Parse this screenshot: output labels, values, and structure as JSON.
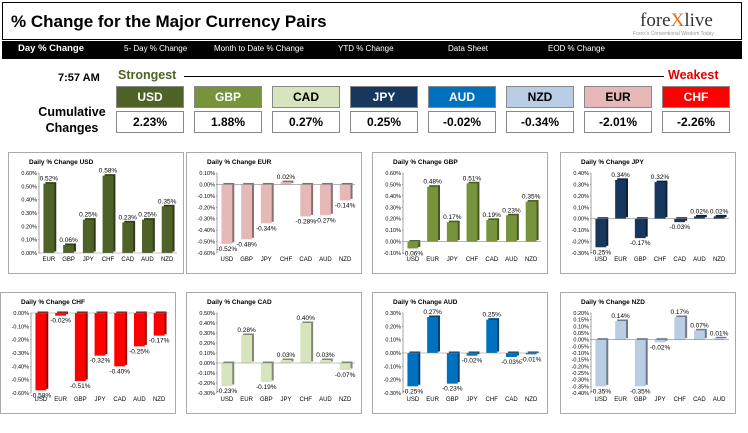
{
  "header": {
    "title": "% Change for the Major Currency Pairs",
    "logo_main": "fore",
    "logo_accent": "X",
    "logo_tail": "live",
    "logo_sub": "Forex's Conventional Wisdom Today"
  },
  "nav": [
    "Day % Change",
    "5- Day % Change",
    "Month to Date % Change",
    "YTD % Change",
    "Data Sheet",
    "EOD % Change"
  ],
  "time": "7:57 AM",
  "strongest_label": "Strongest",
  "weakest_label": "Weakest",
  "cumulative_label": "Cumulative Changes",
  "ranking": [
    {
      "currency": "USD",
      "change": "2.23%",
      "bg": "#4f6228",
      "fg": "#ffffff"
    },
    {
      "currency": "GBP",
      "change": "1.88%",
      "bg": "#77933c",
      "fg": "#ffffff"
    },
    {
      "currency": "CAD",
      "change": "0.27%",
      "bg": "#d7e4bd",
      "fg": "#000000"
    },
    {
      "currency": "JPY",
      "change": "0.25%",
      "bg": "#17375e",
      "fg": "#ffffff"
    },
    {
      "currency": "AUD",
      "change": "-0.02%",
      "bg": "#0070c0",
      "fg": "#ffffff"
    },
    {
      "currency": "NZD",
      "change": "-0.34%",
      "bg": "#b9cde5",
      "fg": "#000000"
    },
    {
      "currency": "EUR",
      "change": "-2.01%",
      "bg": "#e6b9b8",
      "fg": "#000000"
    },
    {
      "currency": "CHF",
      "change": "-2.26%",
      "bg": "#ff0000",
      "fg": "#ffffff"
    }
  ],
  "chart_data": [
    {
      "type": "bar",
      "title": "Daily % Change USD",
      "color": "#4f6228",
      "ylim": [
        0,
        0.6
      ],
      "step": 0.1,
      "categories": [
        "EUR",
        "GBP",
        "JPY",
        "CHF",
        "CAD",
        "AUD",
        "NZD"
      ],
      "values": [
        0.52,
        0.06,
        0.25,
        0.58,
        0.23,
        0.25,
        0.35
      ],
      "labels": [
        "0.52%",
        "0.06%",
        "0.25%",
        "0.58%",
        "0.23%",
        "0.25%",
        "0.35%"
      ]
    },
    {
      "type": "bar",
      "title": "Daily % Change EUR",
      "color": "#e6b9b8",
      "ylim": [
        -0.6,
        0.1
      ],
      "step": 0.1,
      "categories": [
        "USD",
        "GBP",
        "JPY",
        "CHF",
        "CAD",
        "AUD",
        "NZD"
      ],
      "values": [
        -0.52,
        -0.48,
        -0.34,
        0.02,
        -0.28,
        -0.27,
        -0.14
      ],
      "labels": [
        "-0.52%",
        "-0.48%",
        "-0.34%",
        "0.02%",
        "-0.28%",
        "-0.27%",
        "-0.14%"
      ]
    },
    {
      "type": "bar",
      "title": "Daily % Change GBP",
      "color": "#77933c",
      "ylim": [
        -0.1,
        0.6
      ],
      "step": 0.1,
      "categories": [
        "USD",
        "EUR",
        "JPY",
        "CHF",
        "CAD",
        "AUD",
        "NZD"
      ],
      "values": [
        -0.06,
        0.48,
        0.17,
        0.51,
        0.19,
        0.23,
        0.35
      ],
      "labels": [
        "-0.06%",
        "0.48%",
        "0.17%",
        "0.51%",
        "0.19%",
        "0.23%",
        "0.35%"
      ]
    },
    {
      "type": "bar",
      "title": "Daily % Change JPY",
      "color": "#17375e",
      "ylim": [
        -0.3,
        0.4
      ],
      "step": 0.1,
      "categories": [
        "USD",
        "EUR",
        "GBP",
        "CHF",
        "CAD",
        "AUD",
        "NZD"
      ],
      "values": [
        -0.25,
        0.34,
        -0.17,
        0.32,
        -0.03,
        0.02,
        0.02
      ],
      "labels": [
        "-0.25%",
        "0.34%",
        "-0.17%",
        "0.32%",
        "-0.03%",
        "0.02%",
        "0.02%"
      ]
    },
    {
      "type": "bar",
      "title": "Daily % Change CHF",
      "color": "#ff0000",
      "ylim": [
        -0.6,
        0
      ],
      "step": 0.1,
      "categories": [
        "USD",
        "EUR",
        "GBP",
        "JPY",
        "CAD",
        "AUD",
        "NZD"
      ],
      "values": [
        -0.58,
        -0.02,
        -0.51,
        -0.32,
        -0.4,
        -0.25,
        -0.17
      ],
      "labels": [
        "-0.58%",
        "-0.02%",
        "-0.51%",
        "-0.32%",
        "-0.40%",
        "-0.25%",
        "-0.17%"
      ]
    },
    {
      "type": "bar",
      "title": "Daily % Change CAD",
      "color": "#d7e4bd",
      "ylim": [
        -0.3,
        0.5
      ],
      "step": 0.1,
      "categories": [
        "USD",
        "EUR",
        "GBP",
        "JPY",
        "CHF",
        "AUD",
        "NZD"
      ],
      "values": [
        -0.23,
        0.28,
        -0.19,
        0.03,
        0.4,
        0.03,
        -0.07
      ],
      "labels": [
        "-0.23%",
        "0.28%",
        "-0.19%",
        "0.03%",
        "0.40%",
        "0.03%",
        "-0.07%"
      ]
    },
    {
      "type": "bar",
      "title": "Daily % Change AUD",
      "color": "#0070c0",
      "ylim": [
        -0.3,
        0.3
      ],
      "step": 0.1,
      "categories": [
        "USD",
        "EUR",
        "GBP",
        "JPY",
        "CHF",
        "CAD",
        "NZD"
      ],
      "values": [
        -0.25,
        0.27,
        -0.23,
        -0.02,
        0.25,
        -0.03,
        -0.01
      ],
      "labels": [
        "-0.25%",
        "0.27%",
        "-0.23%",
        "-0.02%",
        "0.25%",
        "-0.03%",
        "-0.01%"
      ]
    },
    {
      "type": "bar",
      "title": "Daily % Change NZD",
      "color": "#b9cde5",
      "ylim": [
        -0.4,
        0.2
      ],
      "step": 0.05,
      "categories": [
        "USD",
        "EUR",
        "GBP",
        "JPY",
        "CHF",
        "CAD",
        "AUD"
      ],
      "values": [
        -0.35,
        0.14,
        -0.35,
        -0.02,
        0.17,
        0.07,
        0.01
      ],
      "labels": [
        "-0.35%",
        "0.14%",
        "-0.35%",
        "-0.02%",
        "0.17%",
        "0.07%",
        "0.01%"
      ]
    }
  ]
}
